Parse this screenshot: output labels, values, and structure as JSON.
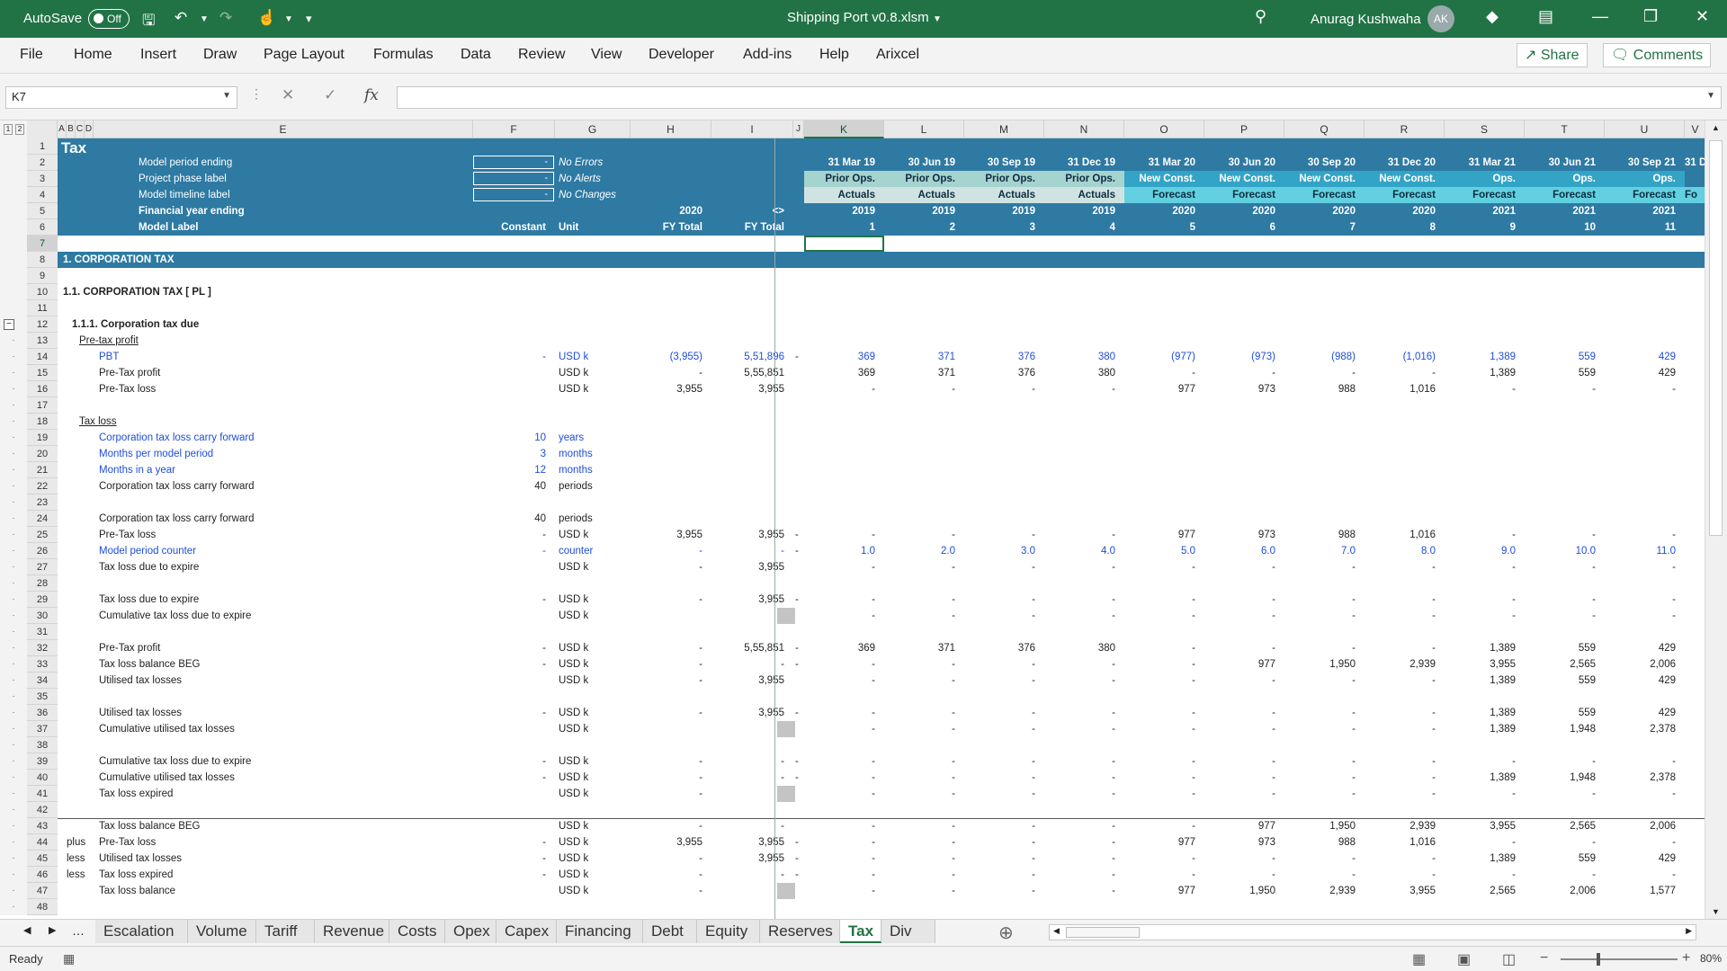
{
  "titlebar": {
    "autosave_label": "AutoSave",
    "autosave_state": "Off",
    "doc_title": "Shipping Port v0.8.xlsm",
    "user_name": "Anurag Kushwaha",
    "user_initials": "AK"
  },
  "menu": {
    "tabs": [
      "File",
      "Home",
      "Insert",
      "Draw",
      "Page Layout",
      "Formulas",
      "Data",
      "Review",
      "View",
      "Developer",
      "Add-ins",
      "Help",
      "Arixcel"
    ],
    "share_label": "Share",
    "comments_label": "Comments"
  },
  "formula_bar": {
    "name_box": "K7",
    "formula": ""
  },
  "columns": [
    "A",
    "B",
    "C",
    "D",
    "E",
    "F",
    "G",
    "H",
    "I",
    "J",
    "K",
    "L",
    "M",
    "N",
    "O",
    "P",
    "Q",
    "R",
    "S",
    "T",
    "U",
    "V"
  ],
  "selected_column": "K",
  "selected_row": 7,
  "header_block": {
    "sheet_title": "Tax",
    "labels": [
      "Model period ending",
      "Project phase label",
      "Model timeline label",
      "Financial year ending",
      "Model Label"
    ],
    "input_values": [
      "-",
      "-",
      "-"
    ],
    "flags": [
      "No Errors",
      "No Alerts",
      "No Changes"
    ],
    "col_labels": {
      "F": "Constant",
      "G": "Unit",
      "H": "FY Total",
      "I": "FY Total"
    },
    "h5": "2020",
    "i5": "<>"
  },
  "timeline": {
    "period_ending": [
      "31 Mar 19",
      "30 Jun 19",
      "30 Sep 19",
      "31 Dec 19",
      "31 Mar 20",
      "30 Jun 20",
      "30 Sep 20",
      "31 Dec 20",
      "31 Mar 21",
      "30 Jun 21",
      "30 Sep 21",
      "31 D"
    ],
    "phase": [
      "Prior Ops.",
      "Prior Ops.",
      "Prior Ops.",
      "Prior Ops.",
      "New Const.",
      "New Const.",
      "New Const.",
      "New Const.",
      "Ops.",
      "Ops.",
      "Ops.",
      ""
    ],
    "status": [
      "Actuals",
      "Actuals",
      "Actuals",
      "Actuals",
      "Forecast",
      "Forecast",
      "Forecast",
      "Forecast",
      "Forecast",
      "Forecast",
      "Forecast",
      "Fo"
    ],
    "fy": [
      "2019",
      "2019",
      "2019",
      "2019",
      "2020",
      "2020",
      "2020",
      "2020",
      "2021",
      "2021",
      "2021",
      ""
    ],
    "counter": [
      "1",
      "2",
      "3",
      "4",
      "5",
      "6",
      "7",
      "8",
      "9",
      "10",
      "11",
      ""
    ]
  },
  "rows": [
    {
      "n": 8,
      "type": "bar",
      "label": "1. CORPORATION TAX"
    },
    {
      "n": 9
    },
    {
      "n": 10,
      "type": "h1",
      "label": "1.1. CORPORATION TAX [ PL ]"
    },
    {
      "n": 11
    },
    {
      "n": 12,
      "type": "h2",
      "label": "1.1.1. Corporation tax due"
    },
    {
      "n": 13,
      "type": "sub",
      "label": "Pre-tax profit"
    },
    {
      "n": 14,
      "label": "PBT",
      "blue": true,
      "f": "-",
      "g": "USD k",
      "h": "(3,955)",
      "i": "5,51,896",
      "j": "-",
      "v": [
        "369",
        "371",
        "376",
        "380",
        "(977)",
        "(973)",
        "(988)",
        "(1,016)",
        "1,389",
        "559",
        "429"
      ]
    },
    {
      "n": 15,
      "label": "Pre-Tax profit",
      "g": "USD k",
      "h": "-",
      "i": "5,55,851",
      "v": [
        "369",
        "371",
        "376",
        "380",
        "-",
        "-",
        "-",
        "-",
        "1,389",
        "559",
        "429"
      ]
    },
    {
      "n": 16,
      "label": "Pre-Tax loss",
      "g": "USD k",
      "h": "3,955",
      "i": "3,955",
      "v": [
        "-",
        "-",
        "-",
        "-",
        "977",
        "973",
        "988",
        "1,016",
        "-",
        "-",
        "-"
      ]
    },
    {
      "n": 17
    },
    {
      "n": 18,
      "type": "sub",
      "label": "Tax loss"
    },
    {
      "n": 19,
      "label": "Corporation tax loss carry forward",
      "blue": true,
      "f": "10",
      "g": "years"
    },
    {
      "n": 20,
      "label": "Months per model period",
      "blue": true,
      "f": "3",
      "g": "months"
    },
    {
      "n": 21,
      "label": "Months in a year",
      "blue": true,
      "f": "12",
      "g": "months"
    },
    {
      "n": 22,
      "label": "Corporation tax loss carry forward",
      "f": "40",
      "g": "periods"
    },
    {
      "n": 23
    },
    {
      "n": 24,
      "label": "Corporation tax loss carry forward",
      "f": "40",
      "g": "periods"
    },
    {
      "n": 25,
      "label": "Pre-Tax loss",
      "f": "-",
      "g": "USD k",
      "h": "3,955",
      "i": "3,955",
      "j": "-",
      "v": [
        "-",
        "-",
        "-",
        "-",
        "977",
        "973",
        "988",
        "1,016",
        "-",
        "-",
        "-"
      ]
    },
    {
      "n": 26,
      "label": "Model period counter",
      "blue": true,
      "f": "-",
      "g": "counter",
      "h": "-",
      "i": "-",
      "j": "-",
      "v": [
        "1.0",
        "2.0",
        "3.0",
        "4.0",
        "5.0",
        "6.0",
        "7.0",
        "8.0",
        "9.0",
        "10.0",
        "11.0"
      ]
    },
    {
      "n": 27,
      "label": "Tax loss due to expire",
      "g": "USD k",
      "h": "-",
      "i": "3,955",
      "v": [
        "-",
        "-",
        "-",
        "-",
        "-",
        "-",
        "-",
        "-",
        "-",
        "-",
        "-"
      ]
    },
    {
      "n": 28
    },
    {
      "n": 29,
      "label": "Tax loss due to expire",
      "f": "-",
      "g": "USD k",
      "h": "-",
      "i": "3,955",
      "j": "-",
      "v": [
        "-",
        "-",
        "-",
        "-",
        "-",
        "-",
        "-",
        "-",
        "-",
        "-",
        "-"
      ]
    },
    {
      "n": 30,
      "label": "Cumulative tax loss due to expire",
      "g": "USD k",
      "grey": true,
      "v": [
        "-",
        "-",
        "-",
        "-",
        "-",
        "-",
        "-",
        "-",
        "-",
        "-",
        "-"
      ]
    },
    {
      "n": 31
    },
    {
      "n": 32,
      "label": "Pre-Tax profit",
      "f": "-",
      "g": "USD k",
      "h": "-",
      "i": "5,55,851",
      "j": "-",
      "v": [
        "369",
        "371",
        "376",
        "380",
        "-",
        "-",
        "-",
        "-",
        "1,389",
        "559",
        "429"
      ]
    },
    {
      "n": 33,
      "label": "Tax loss balance BEG",
      "f": "-",
      "g": "USD k",
      "h": "-",
      "i": "-",
      "j": "-",
      "v": [
        "-",
        "-",
        "-",
        "-",
        "-",
        "977",
        "1,950",
        "2,939",
        "3,955",
        "2,565",
        "2,006"
      ]
    },
    {
      "n": 34,
      "label": "Utilised tax losses",
      "g": "USD k",
      "h": "-",
      "i": "3,955",
      "v": [
        "-",
        "-",
        "-",
        "-",
        "-",
        "-",
        "-",
        "-",
        "1,389",
        "559",
        "429"
      ]
    },
    {
      "n": 35
    },
    {
      "n": 36,
      "label": "Utilised tax losses",
      "f": "-",
      "g": "USD k",
      "h": "-",
      "i": "3,955",
      "j": "-",
      "v": [
        "-",
        "-",
        "-",
        "-",
        "-",
        "-",
        "-",
        "-",
        "1,389",
        "559",
        "429"
      ]
    },
    {
      "n": 37,
      "label": "Cumulative utilised tax losses",
      "g": "USD k",
      "grey": true,
      "v": [
        "-",
        "-",
        "-",
        "-",
        "-",
        "-",
        "-",
        "-",
        "1,389",
        "1,948",
        "2,378"
      ]
    },
    {
      "n": 38
    },
    {
      "n": 39,
      "label": "Cumulative tax loss due to expire",
      "f": "-",
      "g": "USD k",
      "h": "-",
      "i": "-",
      "j": "-",
      "v": [
        "-",
        "-",
        "-",
        "-",
        "-",
        "-",
        "-",
        "-",
        "-",
        "-",
        "-"
      ]
    },
    {
      "n": 40,
      "label": "Cumulative utilised tax losses",
      "f": "-",
      "g": "USD k",
      "h": "-",
      "i": "-",
      "j": "-",
      "v": [
        "-",
        "-",
        "-",
        "-",
        "-",
        "-",
        "-",
        "-",
        "1,389",
        "1,948",
        "2,378"
      ]
    },
    {
      "n": 41,
      "label": "Tax loss expired",
      "g": "USD k",
      "h": "-",
      "i": "-",
      "grey": true,
      "v": [
        "-",
        "-",
        "-",
        "-",
        "-",
        "-",
        "-",
        "-",
        "-",
        "-",
        "-"
      ]
    },
    {
      "n": 42
    },
    {
      "n": 43,
      "label": "Tax loss balance BEG",
      "g": "USD k",
      "h": "-",
      "i": "-",
      "top": true,
      "v": [
        "-",
        "-",
        "-",
        "-",
        "-",
        "977",
        "1,950",
        "2,939",
        "3,955",
        "2,565",
        "2,006"
      ]
    },
    {
      "n": 44,
      "pre": "plus",
      "label": "Pre-Tax loss",
      "f": "-",
      "g": "USD k",
      "h": "3,955",
      "i": "3,955",
      "j": "-",
      "v": [
        "-",
        "-",
        "-",
        "-",
        "977",
        "973",
        "988",
        "1,016",
        "-",
        "-",
        "-"
      ]
    },
    {
      "n": 45,
      "pre": "less",
      "label": "Utilised tax losses",
      "f": "-",
      "g": "USD k",
      "h": "-",
      "i": "3,955",
      "j": "-",
      "v": [
        "-",
        "-",
        "-",
        "-",
        "-",
        "-",
        "-",
        "-",
        "1,389",
        "559",
        "429"
      ]
    },
    {
      "n": 46,
      "pre": "less",
      "label": "Tax loss expired",
      "f": "-",
      "g": "USD k",
      "h": "-",
      "i": "-",
      "j": "-",
      "v": [
        "-",
        "-",
        "-",
        "-",
        "-",
        "-",
        "-",
        "-",
        "-",
        "-",
        "-"
      ]
    },
    {
      "n": 47,
      "label": "Tax loss balance",
      "g": "USD k",
      "h": "-",
      "i": "-",
      "grey": true,
      "v": [
        "-",
        "-",
        "-",
        "-",
        "977",
        "1,950",
        "2,939",
        "3,955",
        "2,565",
        "2,006",
        "1,577"
      ]
    },
    {
      "n": 48
    }
  ],
  "sheet_tabs": [
    "Escalation",
    "Volume",
    "Tariff",
    "Revenue",
    "Costs",
    "Opex",
    "Capex",
    "Financing",
    "Debt",
    "Equity",
    "Reserves",
    "Tax",
    "Div ..."
  ],
  "active_tab": "Tax",
  "statusbar": {
    "ready": "Ready",
    "zoom": "80%"
  },
  "colors": {
    "excel_green": "#217346",
    "header_blue": "#2e7aa3",
    "input_blue": "#1f4ed8"
  }
}
